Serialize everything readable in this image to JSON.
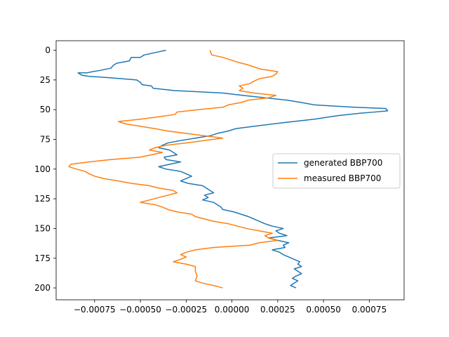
{
  "chart_data": {
    "type": "line",
    "title": "",
    "xlabel": "",
    "ylabel": "",
    "xlim": [
      -0.00096,
      0.00094
    ],
    "ylim": [
      210,
      -8
    ],
    "y_inverted": true,
    "xticks": [
      -0.00075,
      -0.0005,
      -0.00025,
      0.0,
      0.00025,
      0.0005,
      0.00075
    ],
    "xtick_labels": [
      "−0.00075",
      "−0.00050",
      "−0.00025",
      "0.00000",
      "0.00025",
      "0.00050",
      "0.00075"
    ],
    "yticks": [
      0,
      25,
      50,
      75,
      100,
      125,
      150,
      175,
      200
    ],
    "ytick_labels": [
      "0",
      "25",
      "50",
      "75",
      "100",
      "125",
      "150",
      "175",
      "200"
    ],
    "grid": false,
    "legend_position": "center-right",
    "series": [
      {
        "name": "generated BBP700",
        "color": "#1f77b4",
        "points": [
          [
            -0.00036,
            0
          ],
          [
            -0.00042,
            2
          ],
          [
            -0.00048,
            4
          ],
          [
            -0.0005,
            6
          ],
          [
            -0.00055,
            6
          ],
          [
            -0.00056,
            9
          ],
          [
            -0.00063,
            11
          ],
          [
            -0.00065,
            13
          ],
          [
            -0.00066,
            15
          ],
          [
            -0.00072,
            17
          ],
          [
            -0.00076,
            18
          ],
          [
            -0.00079,
            19
          ],
          [
            -0.00084,
            19
          ],
          [
            -0.00082,
            21
          ],
          [
            -0.00078,
            22
          ],
          [
            -0.00068,
            23
          ],
          [
            -0.0006,
            24
          ],
          [
            -0.00052,
            25
          ],
          [
            -0.0005,
            27
          ],
          [
            -0.00049,
            29
          ],
          [
            -0.00044,
            30
          ],
          [
            -0.00043,
            32
          ],
          [
            -0.00031,
            34
          ],
          [
            -0.00018,
            35
          ],
          [
            -5e-05,
            36
          ],
          [
            6e-05,
            38
          ],
          [
            0.00018,
            40
          ],
          [
            0.0003,
            42
          ],
          [
            0.00038,
            44
          ],
          [
            0.00045,
            46
          ],
          [
            0.00056,
            47
          ],
          [
            0.00067,
            48
          ],
          [
            0.00084,
            49
          ],
          [
            0.00085,
            51
          ],
          [
            0.00078,
            52
          ],
          [
            0.0007,
            53
          ],
          [
            0.00058,
            55
          ],
          [
            0.00045,
            58
          ],
          [
            0.00028,
            61
          ],
          [
            0.00012,
            64
          ],
          [
            2e-05,
            66
          ],
          [
            -2e-05,
            68
          ],
          [
            -8e-05,
            70
          ],
          [
            -0.00012,
            72
          ],
          [
            -0.0002,
            74
          ],
          [
            -0.00028,
            76
          ],
          [
            -0.00035,
            78
          ],
          [
            -0.00038,
            80
          ],
          [
            -0.0004,
            82
          ],
          [
            -0.00034,
            84
          ],
          [
            -0.00032,
            86
          ],
          [
            -0.0003,
            88
          ],
          [
            -0.00037,
            90
          ],
          [
            -0.00036,
            92
          ],
          [
            -0.00028,
            94
          ],
          [
            -0.00034,
            96
          ],
          [
            -0.0004,
            98
          ],
          [
            -0.00036,
            100
          ],
          [
            -0.00028,
            102
          ],
          [
            -0.00025,
            104
          ],
          [
            -0.00022,
            106
          ],
          [
            -0.00025,
            108
          ],
          [
            -0.00028,
            110
          ],
          [
            -0.00024,
            112
          ],
          [
            -0.00016,
            114
          ],
          [
            -0.00014,
            116
          ],
          [
            -0.00012,
            118
          ],
          [
            -0.0001,
            120
          ],
          [
            -0.00015,
            122
          ],
          [
            -0.00013,
            124
          ],
          [
            -0.00016,
            126
          ],
          [
            -0.0001,
            128
          ],
          [
            -8e-05,
            130
          ],
          [
            -6e-05,
            132
          ],
          [
            -5e-05,
            134
          ],
          [
            1e-05,
            136
          ],
          [
            5e-05,
            138
          ],
          [
            9e-05,
            140
          ],
          [
            0.00012,
            142
          ],
          [
            0.00015,
            144
          ],
          [
            0.00018,
            146
          ],
          [
            0.00022,
            148
          ],
          [
            0.00028,
            150
          ],
          [
            0.00024,
            152
          ],
          [
            0.00026,
            154
          ],
          [
            0.0003,
            156
          ],
          [
            0.0002,
            158
          ],
          [
            0.00025,
            160
          ],
          [
            0.00031,
            162
          ],
          [
            0.00028,
            164
          ],
          [
            0.00029,
            166
          ],
          [
            0.00022,
            168
          ],
          [
            0.00026,
            170
          ],
          [
            0.00028,
            172
          ],
          [
            0.00031,
            174
          ],
          [
            0.00034,
            176
          ],
          [
            0.00037,
            178
          ],
          [
            0.00036,
            180
          ],
          [
            0.00038,
            182
          ],
          [
            0.00034,
            184
          ],
          [
            0.00036,
            186
          ],
          [
            0.00038,
            188
          ],
          [
            0.00035,
            190
          ],
          [
            0.00033,
            192
          ],
          [
            0.00036,
            194
          ],
          [
            0.00034,
            196
          ],
          [
            0.00032,
            198
          ],
          [
            0.00035,
            200
          ]
        ]
      },
      {
        "name": "measured BBP700",
        "color": "#ff7f0e",
        "points": [
          [
            -0.00012,
            0
          ],
          [
            -0.00011,
            4
          ],
          [
            -5e-05,
            6
          ],
          [
            -1e-05,
            8
          ],
          [
            3e-05,
            10
          ],
          [
            8e-05,
            12
          ],
          [
            0.00012,
            14
          ],
          [
            0.00016,
            16
          ],
          [
            0.00025,
            18
          ],
          [
            0.00024,
            20
          ],
          [
            0.00022,
            22
          ],
          [
            0.00015,
            24
          ],
          [
            0.00012,
            26
          ],
          [
            0.0001,
            28
          ],
          [
            4e-05,
            30
          ],
          [
            6e-05,
            32
          ],
          [
            4e-05,
            34
          ],
          [
            0.00012,
            36
          ],
          [
            0.00024,
            38
          ],
          [
            0.0002,
            40
          ],
          [
            9e-05,
            42
          ],
          [
            5e-05,
            44
          ],
          [
            -2e-05,
            46
          ],
          [
            -5e-05,
            48
          ],
          [
            -0.00018,
            50
          ],
          [
            -0.0003,
            52
          ],
          [
            -0.00031,
            54
          ],
          [
            -0.0004,
            56
          ],
          [
            -0.0005,
            58
          ],
          [
            -0.00062,
            60
          ],
          [
            -0.00058,
            62
          ],
          [
            -0.0005,
            64
          ],
          [
            -0.00042,
            66
          ],
          [
            -0.00035,
            68
          ],
          [
            -0.00025,
            70
          ],
          [
            -0.00015,
            72
          ],
          [
            -5e-05,
            74
          ],
          [
            -0.00015,
            76
          ],
          [
            -0.00025,
            78
          ],
          [
            -0.00036,
            80
          ],
          [
            -0.00042,
            82
          ],
          [
            -0.00045,
            84
          ],
          [
            -0.00038,
            86
          ],
          [
            -0.00044,
            88
          ],
          [
            -0.0005,
            90
          ],
          [
            -0.00066,
            92
          ],
          [
            -0.00078,
            94
          ],
          [
            -0.00088,
            96
          ],
          [
            -0.00089,
            98
          ],
          [
            -0.00085,
            100
          ],
          [
            -0.0008,
            102
          ],
          [
            -0.00078,
            104
          ],
          [
            -0.00075,
            106
          ],
          [
            -0.0007,
            108
          ],
          [
            -0.00062,
            110
          ],
          [
            -0.00055,
            112
          ],
          [
            -0.00045,
            114
          ],
          [
            -0.0004,
            116
          ],
          [
            -0.00032,
            118
          ],
          [
            -0.0003,
            120
          ],
          [
            -0.00035,
            122
          ],
          [
            -0.0004,
            124
          ],
          [
            -0.00045,
            126
          ],
          [
            -0.0005,
            128
          ],
          [
            -0.00042,
            130
          ],
          [
            -0.00038,
            132
          ],
          [
            -0.00035,
            134
          ],
          [
            -0.0003,
            136
          ],
          [
            -0.00022,
            138
          ],
          [
            -0.0002,
            140
          ],
          [
            -0.00015,
            142
          ],
          [
            -0.0001,
            144
          ],
          [
            -2e-05,
            146
          ],
          [
            3e-05,
            148
          ],
          [
            8e-05,
            150
          ],
          [
            0.00015,
            152
          ],
          [
            0.00022,
            154
          ],
          [
            0.00018,
            156
          ],
          [
            0.0002,
            158
          ],
          [
            0.00025,
            160
          ],
          [
            0.00015,
            162
          ],
          [
            0.0001,
            164
          ],
          [
            -0.0001,
            166
          ],
          [
            -0.0002,
            168
          ],
          [
            -0.00025,
            170
          ],
          [
            -0.00028,
            172
          ],
          [
            -0.00025,
            174
          ],
          [
            -0.00028,
            176
          ],
          [
            -0.00032,
            178
          ],
          [
            -0.00025,
            180
          ],
          [
            -0.0002,
            182
          ],
          [
            -0.0002,
            186
          ],
          [
            -0.00019,
            190
          ],
          [
            -0.0002,
            194
          ],
          [
            -0.00016,
            196
          ],
          [
            -0.0001,
            198
          ],
          [
            -5e-05,
            200
          ]
        ]
      }
    ]
  }
}
